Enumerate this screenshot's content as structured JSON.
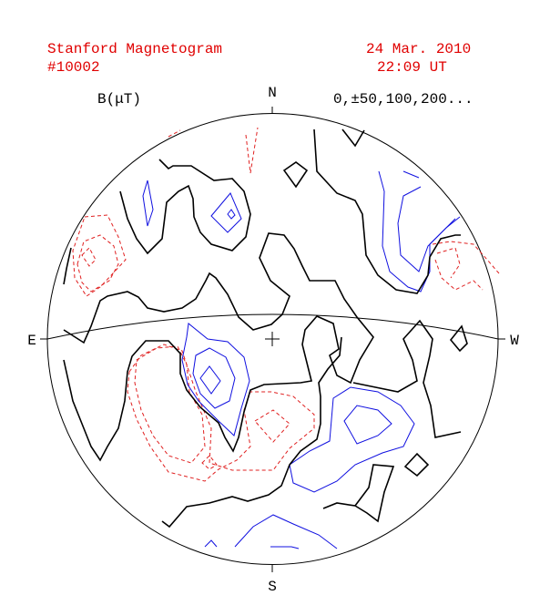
{
  "header": {
    "title": "Stanford Magnetogram",
    "id": "#10002",
    "date": "24 Mar. 2010",
    "time": "22:09 UT"
  },
  "legend": {
    "unit": "B(μT)",
    "levels": "0,±50,100,200..."
  },
  "compass": {
    "north": "N",
    "south": "S",
    "east": "E",
    "west": "W"
  }
}
